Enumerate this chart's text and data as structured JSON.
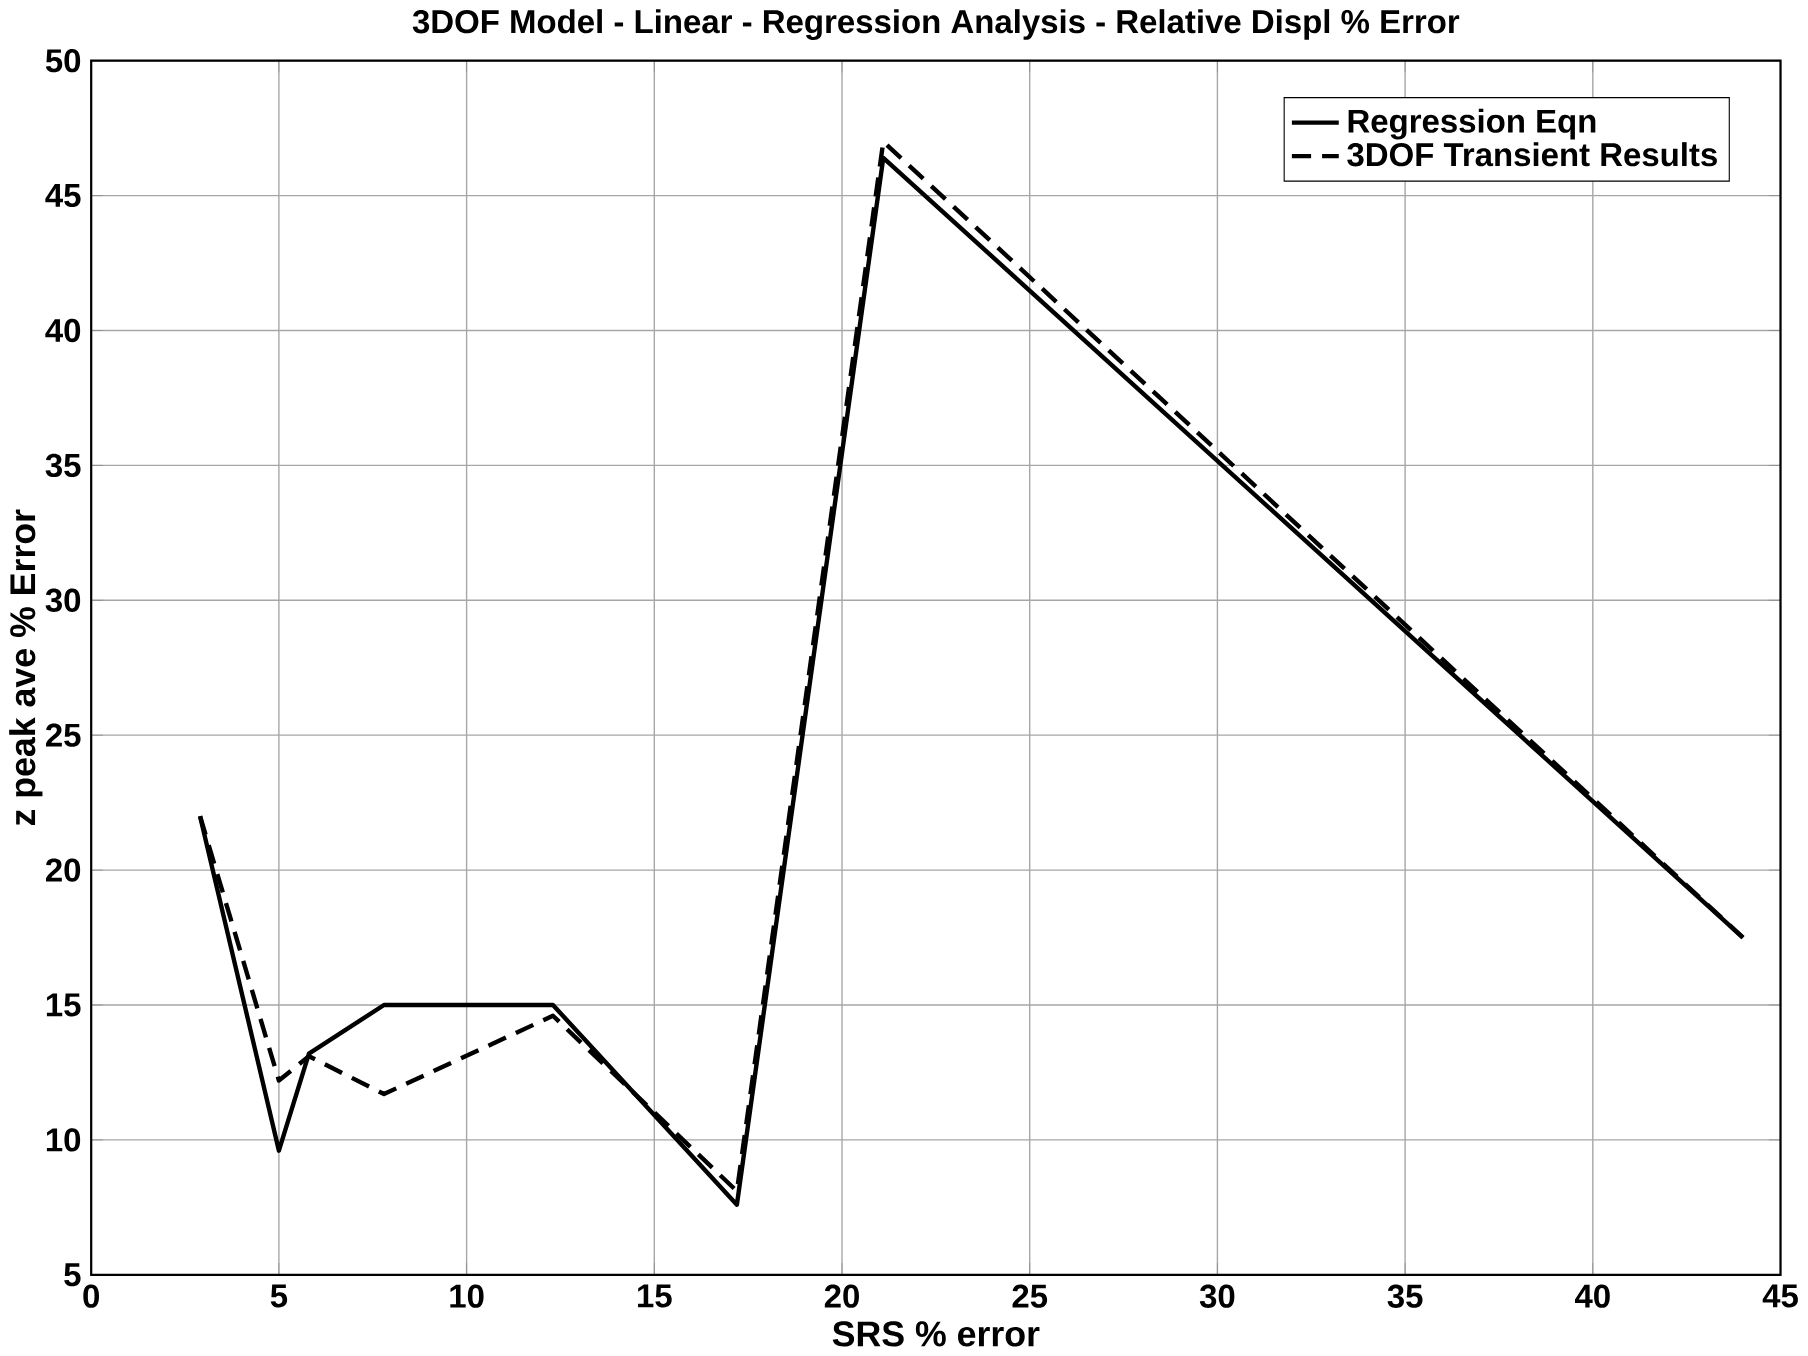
{
  "chart_data": {
    "type": "line",
    "title": "3DOF Model - Linear - Regression Analysis - Relative Displ % Error",
    "xlabel": "SRS % error",
    "ylabel": "z peak ave % Error",
    "series": [
      {
        "name": "Regression Eqn",
        "color": "#000000",
        "line_style": "solid",
        "x": [
          2.9,
          5,
          5.8,
          7.8,
          12.3,
          17.2,
          21.1,
          44
        ],
        "values": [
          22,
          9.6,
          13.2,
          15,
          15,
          7.6,
          46.4,
          17.5
        ]
      },
      {
        "name": "3DOF Transient Results",
        "color": "#000000",
        "line_style": "dashed",
        "x": [
          2.9,
          5,
          5.8,
          7.8,
          12.3,
          17.2,
          21.1,
          44
        ],
        "values": [
          22,
          12.2,
          13.1,
          11.7,
          14.6,
          8.1,
          47,
          17.5
        ]
      }
    ],
    "xlim": [
      0,
      45
    ],
    "ylim": [
      5,
      50
    ],
    "xticks": [
      0,
      5,
      10,
      15,
      20,
      25,
      30,
      35,
      40,
      45
    ],
    "yticks": [
      5,
      10,
      15,
      20,
      25,
      30,
      35,
      40,
      45,
      50
    ],
    "grid": true,
    "legend": "top right",
    "marker": "none"
  }
}
